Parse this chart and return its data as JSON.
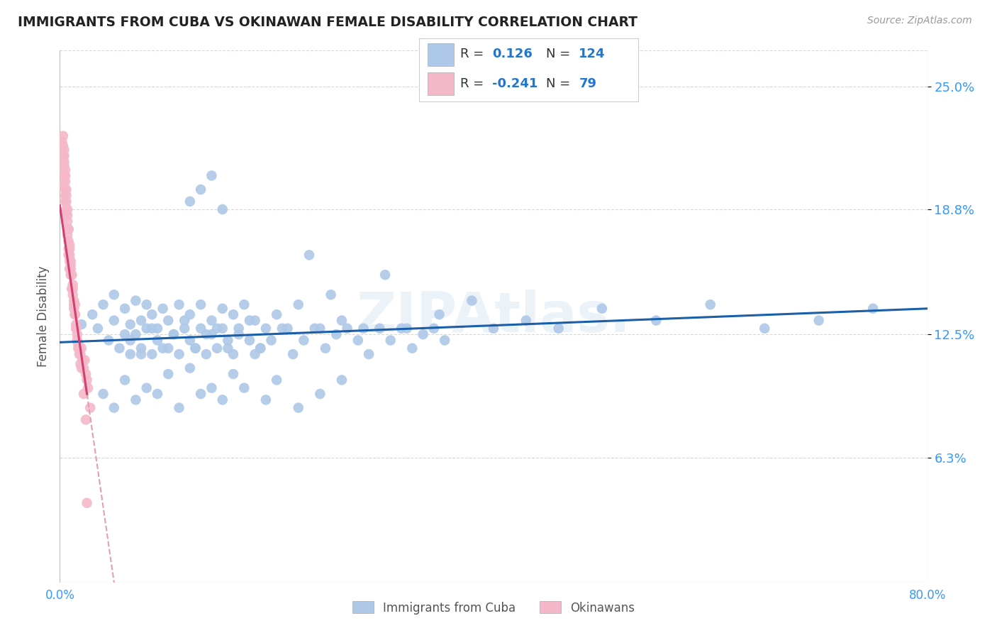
{
  "title": "IMMIGRANTS FROM CUBA VS OKINAWAN FEMALE DISABILITY CORRELATION CHART",
  "source": "Source: ZipAtlas.com",
  "ylabel": "Female Disability",
  "yticks": [
    "6.3%",
    "12.5%",
    "18.8%",
    "25.0%"
  ],
  "ytick_vals": [
    0.063,
    0.125,
    0.188,
    0.25
  ],
  "xlim": [
    0.0,
    0.8
  ],
  "ylim": [
    0.0,
    0.268
  ],
  "watermark": "ZIPAtlas.",
  "blue_color": "#aec8e8",
  "pink_color": "#f4b8c8",
  "trend_blue": "#1a5fa8",
  "trend_pink": "#d04070",
  "trend_pink_dash": "#e0a0b0",
  "background": "#ffffff",
  "grid_color": "#d8d8d8",
  "cuba_x": [
    0.02,
    0.03,
    0.035,
    0.04,
    0.045,
    0.05,
    0.05,
    0.055,
    0.06,
    0.06,
    0.065,
    0.065,
    0.07,
    0.07,
    0.075,
    0.075,
    0.08,
    0.08,
    0.085,
    0.085,
    0.09,
    0.09,
    0.095,
    0.1,
    0.1,
    0.105,
    0.11,
    0.11,
    0.115,
    0.12,
    0.12,
    0.125,
    0.13,
    0.13,
    0.135,
    0.14,
    0.14,
    0.145,
    0.15,
    0.15,
    0.155,
    0.16,
    0.16,
    0.165,
    0.17,
    0.175,
    0.18,
    0.185,
    0.19,
    0.2,
    0.21,
    0.22,
    0.23,
    0.24,
    0.25,
    0.26,
    0.28,
    0.3,
    0.32,
    0.35,
    0.38,
    0.4,
    0.43,
    0.46,
    0.5,
    0.55,
    0.6,
    0.65,
    0.7,
    0.75,
    0.04,
    0.05,
    0.06,
    0.07,
    0.08,
    0.09,
    0.1,
    0.11,
    0.12,
    0.13,
    0.14,
    0.15,
    0.16,
    0.17,
    0.18,
    0.19,
    0.2,
    0.22,
    0.24,
    0.26,
    0.065,
    0.075,
    0.085,
    0.095,
    0.105,
    0.115,
    0.125,
    0.135,
    0.145,
    0.155,
    0.165,
    0.175,
    0.185,
    0.195,
    0.205,
    0.215,
    0.225,
    0.235,
    0.245,
    0.255,
    0.265,
    0.275,
    0.285,
    0.295,
    0.305,
    0.315,
    0.325,
    0.335,
    0.345,
    0.355,
    0.12,
    0.13,
    0.14,
    0.15
  ],
  "cuba_y": [
    0.13,
    0.135,
    0.128,
    0.14,
    0.122,
    0.132,
    0.145,
    0.118,
    0.138,
    0.125,
    0.13,
    0.115,
    0.142,
    0.125,
    0.132,
    0.118,
    0.14,
    0.128,
    0.135,
    0.115,
    0.128,
    0.122,
    0.138,
    0.132,
    0.118,
    0.125,
    0.14,
    0.115,
    0.128,
    0.122,
    0.135,
    0.118,
    0.128,
    0.14,
    0.115,
    0.132,
    0.125,
    0.118,
    0.138,
    0.128,
    0.122,
    0.135,
    0.115,
    0.128,
    0.14,
    0.122,
    0.132,
    0.118,
    0.128,
    0.135,
    0.128,
    0.14,
    0.165,
    0.128,
    0.145,
    0.132,
    0.128,
    0.155,
    0.128,
    0.135,
    0.142,
    0.128,
    0.132,
    0.128,
    0.138,
    0.132,
    0.14,
    0.128,
    0.132,
    0.138,
    0.095,
    0.088,
    0.102,
    0.092,
    0.098,
    0.095,
    0.105,
    0.088,
    0.108,
    0.095,
    0.098,
    0.092,
    0.105,
    0.098,
    0.115,
    0.092,
    0.102,
    0.088,
    0.095,
    0.102,
    0.122,
    0.115,
    0.128,
    0.118,
    0.125,
    0.132,
    0.118,
    0.125,
    0.128,
    0.118,
    0.125,
    0.132,
    0.118,
    0.122,
    0.128,
    0.115,
    0.122,
    0.128,
    0.118,
    0.125,
    0.128,
    0.122,
    0.115,
    0.128,
    0.122,
    0.128,
    0.118,
    0.125,
    0.128,
    0.122,
    0.192,
    0.198,
    0.205,
    0.188
  ],
  "okinawa_x": [
    0.002,
    0.002,
    0.003,
    0.003,
    0.003,
    0.004,
    0.004,
    0.004,
    0.005,
    0.005,
    0.005,
    0.005,
    0.006,
    0.006,
    0.006,
    0.007,
    0.007,
    0.007,
    0.008,
    0.008,
    0.008,
    0.009,
    0.009,
    0.009,
    0.01,
    0.01,
    0.01,
    0.011,
    0.011,
    0.012,
    0.012,
    0.013,
    0.013,
    0.014,
    0.014,
    0.015,
    0.015,
    0.016,
    0.016,
    0.017,
    0.018,
    0.019,
    0.02,
    0.021,
    0.022,
    0.023,
    0.024,
    0.025,
    0.026,
    0.028,
    0.003,
    0.004,
    0.005,
    0.006,
    0.007,
    0.008,
    0.009,
    0.01,
    0.011,
    0.012,
    0.013,
    0.014,
    0.015,
    0.016,
    0.017,
    0.018,
    0.019,
    0.02,
    0.022,
    0.024,
    0.002,
    0.003,
    0.004,
    0.005,
    0.006,
    0.007,
    0.008,
    0.009,
    0.025
  ],
  "okinawa_y": [
    0.218,
    0.222,
    0.215,
    0.21,
    0.225,
    0.205,
    0.21,
    0.218,
    0.195,
    0.202,
    0.198,
    0.208,
    0.188,
    0.195,
    0.192,
    0.178,
    0.182,
    0.188,
    0.172,
    0.178,
    0.168,
    0.162,
    0.17,
    0.165,
    0.158,
    0.162,
    0.155,
    0.148,
    0.155,
    0.145,
    0.15,
    0.142,
    0.138,
    0.135,
    0.14,
    0.13,
    0.128,
    0.125,
    0.122,
    0.12,
    0.118,
    0.115,
    0.118,
    0.112,
    0.108,
    0.112,
    0.105,
    0.102,
    0.098,
    0.088,
    0.22,
    0.212,
    0.205,
    0.198,
    0.185,
    0.178,
    0.168,
    0.16,
    0.155,
    0.148,
    0.14,
    0.135,
    0.128,
    0.122,
    0.118,
    0.115,
    0.11,
    0.108,
    0.095,
    0.082,
    0.21,
    0.2,
    0.215,
    0.192,
    0.185,
    0.175,
    0.165,
    0.158,
    0.04
  ],
  "trend_blue_start_x": 0.0,
  "trend_blue_end_x": 0.8,
  "trend_blue_start_y": 0.121,
  "trend_blue_end_y": 0.138,
  "trend_pink_solid_start_x": 0.0,
  "trend_pink_solid_end_x": 0.025,
  "trend_pink_dash_start_x": 0.025,
  "trend_pink_dash_end_x": 0.12,
  "trend_pink_intercept": 0.19,
  "trend_pink_slope": -3.8
}
